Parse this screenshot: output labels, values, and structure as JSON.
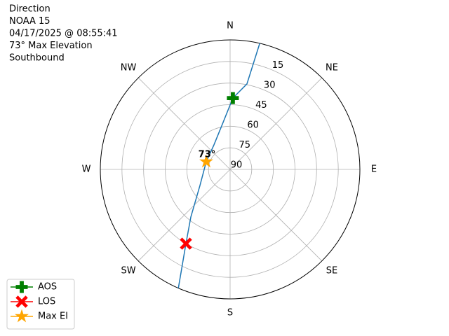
{
  "chart_data": {
    "type": "polar",
    "title_lines": [
      "Direction",
      "NOAA 15",
      "04/17/2025 @ 08:55:41",
      "73° Max Elevation",
      "Southbound"
    ],
    "theta_zero": "N",
    "theta_direction": "clockwise",
    "xticks": [
      {
        "value": 0,
        "label": "N"
      },
      {
        "value": 45,
        "label": "NE"
      },
      {
        "value": 90,
        "label": "E"
      },
      {
        "value": 135,
        "label": "SE"
      },
      {
        "value": 180,
        "label": "S"
      },
      {
        "value": 225,
        "label": "SW"
      },
      {
        "value": 270,
        "label": "W"
      },
      {
        "value": 315,
        "label": "NW"
      }
    ],
    "ylim": [
      90,
      0
    ],
    "yticks": [
      15,
      30,
      45,
      60,
      75,
      90
    ],
    "grid": true,
    "series": [
      {
        "color": "#1f77b4",
        "marker": "line",
        "x": [
          13.2,
          11.1,
          2.2,
          351.5,
          326.7,
          287.9,
          241.9,
          219.5,
          210.7,
          203.5
        ],
        "values": [
          0,
          29.5,
          40.4,
          57,
          69.6,
          72.6,
          66.3,
          47.2,
          30,
          0
        ]
      },
      {
        "name": "AOS",
        "color": "#008000",
        "marker": "plus",
        "x": [
          2.2
        ],
        "values": [
          40.4
        ]
      },
      {
        "name": "LOS",
        "color": "#ff0000",
        "marker": "x",
        "x": [
          210.7
        ],
        "values": [
          30
        ]
      },
      {
        "name": "Max El",
        "color": "#ffa500",
        "marker": "star",
        "x": [
          287.9
        ],
        "values": [
          72.6
        ]
      }
    ],
    "annotations": [
      {
        "text": "73°",
        "x": 287.9,
        "y": 72.6
      }
    ],
    "legend": "lower left"
  }
}
